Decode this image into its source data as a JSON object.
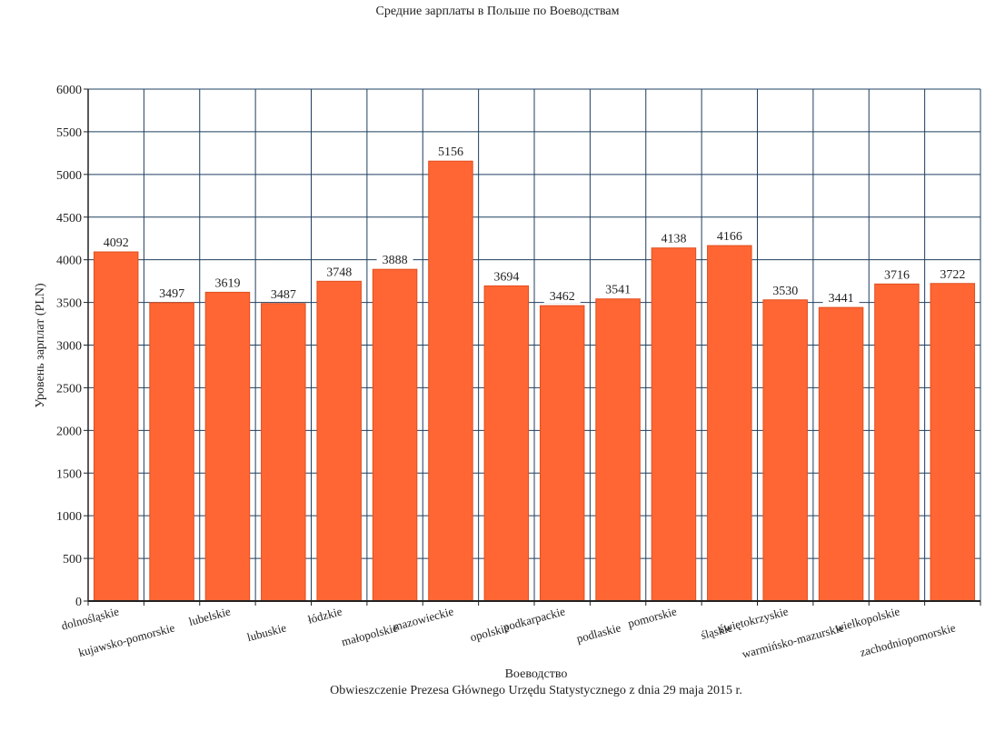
{
  "chart_data": {
    "type": "bar",
    "title": "Средние зарплаты в Польше по Воеводствам",
    "xlabel": "Воеводство",
    "ylabel": "Уровень зарплат (PLN)",
    "source": "Obwieszczenie Prezesa Głównego Urzędu Statystycznego z dnia 29 maja 2015 r.",
    "categories": [
      "dolnośląskie",
      "kujawsko-pomorskie",
      "lubelskie",
      "lubuskie",
      "łódzkie",
      "małopolskie",
      "mazowieckie",
      "opolskie",
      "podkarpackie",
      "podlaskie",
      "pomorskie",
      "śląskie",
      "świętokrzyskie",
      "warmińsko-mazurskie",
      "wielkopolskie",
      "zachodniopomorskie"
    ],
    "values": [
      4092,
      3497,
      3619,
      3487,
      3748,
      3888,
      5156,
      3694,
      3462,
      3541,
      4138,
      4166,
      3530,
      3441,
      3716,
      3722
    ],
    "ylim": [
      0,
      6000
    ],
    "yticks": [
      0,
      500,
      1000,
      1500,
      2000,
      2500,
      3000,
      3500,
      4000,
      4500,
      5000,
      5500,
      6000
    ],
    "grid": true,
    "bar_color": "#ff6633"
  }
}
